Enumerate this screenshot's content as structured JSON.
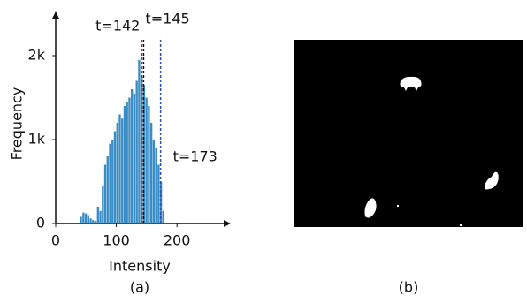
{
  "chart_data": {
    "type": "histogram",
    "x_label": "Intensity",
    "y_label": "Frequency",
    "bins": [
      40,
      44,
      48,
      52,
      56,
      60,
      64,
      68,
      72,
      76,
      80,
      84,
      88,
      92,
      96,
      100,
      104,
      108,
      112,
      116,
      120,
      124,
      128,
      132,
      136,
      140,
      144,
      148,
      152,
      156,
      160,
      164,
      168,
      172,
      176,
      180
    ],
    "counts": [
      80,
      130,
      120,
      100,
      60,
      40,
      30,
      200,
      150,
      450,
      700,
      800,
      950,
      1000,
      1100,
      1200,
      1300,
      1250,
      1400,
      1450,
      1500,
      1600,
      1550,
      1700,
      1950,
      1750,
      1650,
      1500,
      1400,
      1200,
      1000,
      900,
      700,
      500,
      150
    ],
    "color": "#3a8cc4",
    "xlim": [
      0,
      280
    ],
    "xticks": [
      0,
      100,
      200
    ],
    "ylim": [
      0,
      2400
    ],
    "yticks": [
      0,
      {
        "value": 1000,
        "label": "1k"
      },
      {
        "value": 2000,
        "label": "2k"
      }
    ],
    "annotations": [
      {
        "label": "t=142",
        "value": 142,
        "color": "#e02020"
      },
      {
        "label": "t=145",
        "value": 145,
        "color": "#111111"
      },
      {
        "label": "t=173",
        "value": 173,
        "color": "#2e4fa8"
      }
    ]
  },
  "panel_labels": [
    "(a)",
    "(b)"
  ]
}
